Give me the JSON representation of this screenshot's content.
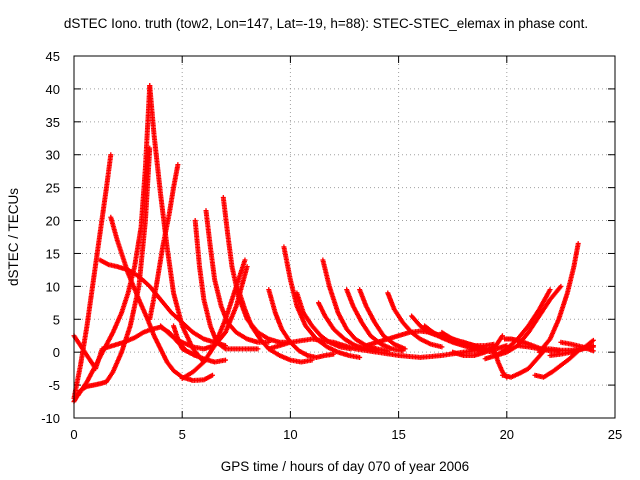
{
  "chart_data": {
    "type": "scatter",
    "title": "dSTEC Iono. truth (tow2, Lon=147, Lat=-19, h=88): STEC-STEC_elemax in phase cont.",
    "xlabel": "GPS time / hours of day 070 of year 2006",
    "ylabel": "dSTEC  / TECUs",
    "xlim": [
      0,
      25
    ],
    "ylim": [
      -10,
      45
    ],
    "xticks": [
      0,
      5,
      10,
      15,
      20,
      25
    ],
    "yticks": [
      -10,
      -5,
      0,
      5,
      10,
      15,
      20,
      25,
      30,
      35,
      40,
      45
    ],
    "grid": true,
    "marker": "plus",
    "color": "#ff0000",
    "series": [
      {
        "x": [
          0.0,
          0.3,
          0.6,
          0.9,
          1.2,
          1.5,
          1.7
        ],
        "y": [
          -7,
          -2,
          4,
          11,
          18,
          25,
          30
        ]
      },
      {
        "x": [
          0.0,
          0.3,
          0.6,
          0.9,
          1.2,
          1.5,
          1.8,
          2.2,
          2.6,
          3.0,
          3.3,
          3.5
        ],
        "y": [
          -7.5,
          -5.8,
          -5.2,
          -5.0,
          -4.8,
          -4.5,
          -3.0,
          0,
          4,
          10,
          20,
          31
        ]
      },
      {
        "x": [
          1.7,
          2.0,
          2.5,
          3.0,
          3.4,
          3.7,
          4.0,
          4.3,
          4.6,
          5.0,
          5.5,
          6.0,
          6.4
        ],
        "y": [
          20.5,
          17,
          12,
          8,
          5,
          2.5,
          0.5,
          -1.5,
          -2.8,
          -3.8,
          -4.3,
          -4.2,
          -3.5
        ]
      },
      {
        "x": [
          0.2,
          0.6,
          1.0,
          1.4,
          1.8,
          2.2,
          2.5,
          2.8,
          3.1,
          3.3,
          3.5
        ],
        "y": [
          -6.5,
          -4.5,
          -2.0,
          0.5,
          3,
          6,
          9,
          13,
          19,
          28,
          40.5
        ]
      },
      {
        "x": [
          3.5,
          3.7,
          4.0,
          4.3,
          4.6,
          5.0,
          5.5,
          6.0
        ],
        "y": [
          40.5,
          33,
          24,
          16,
          9,
          4,
          0.5,
          -1.5
        ]
      },
      {
        "x": [
          0.0,
          0.5,
          1.0,
          1.3,
          1.8,
          2.3,
          2.8,
          3.2,
          3.6,
          4.0,
          4.4,
          4.8,
          5.2,
          5.6
        ],
        "y": [
          2.5,
          0,
          -2.5,
          0.5,
          1.0,
          1.5,
          2.2,
          3.0,
          3.5,
          3.8,
          3.0,
          1.5,
          0.2,
          -0.5
        ]
      },
      {
        "x": [
          1.2,
          1.6,
          2.0,
          2.5,
          3.0,
          3.5,
          4.0,
          4.5,
          5.0,
          5.5,
          6.0,
          6.5,
          7.0
        ],
        "y": [
          14.0,
          13.3,
          13.0,
          12.5,
          11.5,
          10.0,
          8.0,
          6.0,
          4.5,
          3.0,
          2.0,
          1.5,
          1.0
        ]
      },
      {
        "x": [
          3.5,
          3.8,
          4.1,
          4.4,
          4.6,
          4.8
        ],
        "y": [
          5,
          10,
          16,
          21,
          25,
          28.5
        ]
      },
      {
        "x": [
          4.6,
          4.8,
          5.0,
          5.3,
          5.6,
          6.0,
          6.5,
          7.0
        ],
        "y": [
          4,
          2,
          0.5,
          0.0,
          -0.5,
          -1.0,
          -1.5,
          -1.2
        ]
      },
      {
        "x": [
          5.6,
          5.8,
          6.0,
          6.3,
          6.6,
          7.0,
          7.5,
          8.0,
          8.5
        ],
        "y": [
          20,
          13,
          8,
          4,
          1.5,
          0.5,
          0.5,
          0.5,
          0.5
        ]
      },
      {
        "x": [
          6.1,
          6.3,
          6.5,
          6.8,
          7.1,
          7.5,
          8.0,
          8.5,
          9.0
        ],
        "y": [
          21.5,
          16,
          11,
          7,
          4.5,
          3,
          2,
          1.5,
          1.5
        ]
      },
      {
        "x": [
          6.9,
          7.1,
          7.3,
          7.6,
          8.0,
          8.5,
          9.0,
          9.5,
          10.0
        ],
        "y": [
          23.5,
          18,
          13,
          8.5,
          5,
          3,
          2,
          1.5,
          1.5
        ]
      },
      {
        "x": [
          5.0,
          5.5,
          6.0,
          6.5,
          7.0,
          7.3,
          7.6,
          7.9
        ],
        "y": [
          -4.0,
          -3.0,
          -1.5,
          1.0,
          5,
          8,
          11,
          14
        ]
      },
      {
        "x": [
          4.0,
          4.5,
          5.0,
          5.5,
          6.0,
          6.5,
          7.0,
          7.5,
          8.0
        ],
        "y": [
          4,
          2.5,
          1.5,
          0.8,
          0.5,
          1,
          3,
          7,
          13
        ]
      },
      {
        "x": [
          7.6,
          7.9,
          8.2,
          8.6,
          9.0,
          9.5,
          10.0,
          10.5,
          11.0
        ],
        "y": [
          9.5,
          6.5,
          4,
          2,
          0.5,
          -0.5,
          -1.2,
          -1.5,
          -1.2
        ]
      },
      {
        "x": [
          9.0,
          9.3,
          9.6,
          10.0,
          10.4,
          10.8,
          11.2,
          11.6,
          12.0
        ],
        "y": [
          9.5,
          6,
          3.5,
          1.5,
          0.2,
          -0.5,
          -0.8,
          -0.5,
          -0.3
        ]
      },
      {
        "x": [
          9.7,
          10.0,
          10.3,
          10.7,
          11.2,
          11.7,
          12.2,
          12.7,
          13.2
        ],
        "y": [
          16,
          11,
          7,
          4,
          2,
          0.8,
          0,
          -0.5,
          -0.8
        ]
      },
      {
        "x": [
          10.3,
          10.6,
          11.0,
          11.4,
          11.8,
          12.3,
          12.8
        ],
        "y": [
          9,
          6,
          4,
          2.5,
          1.5,
          0.8,
          0.5
        ]
      },
      {
        "x": [
          11.5,
          11.8,
          12.2,
          12.6,
          13.0,
          13.5,
          14.0,
          14.5
        ],
        "y": [
          14,
          10,
          6,
          3.5,
          2,
          1,
          0.5,
          0.2
        ]
      },
      {
        "x": [
          11.3,
          11.6,
          12.0,
          12.5,
          13.0,
          13.5,
          14.0
        ],
        "y": [
          7.5,
          5.5,
          3.5,
          2,
          1,
          0.5,
          0.3
        ]
      },
      {
        "x": [
          12.6,
          12.9,
          13.3,
          13.7,
          14.2,
          14.7,
          15.2
        ],
        "y": [
          9.5,
          7,
          4.5,
          2.5,
          1.2,
          0.5,
          0.2
        ]
      },
      {
        "x": [
          13.2,
          13.5,
          13.9,
          14.3,
          14.8,
          15.3
        ],
        "y": [
          9.5,
          7,
          4.5,
          2.5,
          1.2,
          0.5
        ]
      },
      {
        "x": [
          14.5,
          14.8,
          15.2,
          15.6,
          16.0,
          16.5,
          17.0
        ],
        "y": [
          9,
          6.5,
          4.5,
          3,
          2,
          1.2,
          0.8
        ]
      },
      {
        "x": [
          9.0,
          10.0,
          11.0,
          12.0,
          13.0,
          14.0,
          15.0,
          16.0,
          17.0,
          18.0,
          19.0
        ],
        "y": [
          0.5,
          1.5,
          2,
          1.5,
          0.5,
          0,
          -0.5,
          -0.8,
          -0.5,
          0,
          0.5
        ]
      },
      {
        "x": [
          13.5,
          14.0,
          14.5,
          15.0,
          15.5,
          16.0,
          16.5,
          17.0,
          17.5,
          18.0,
          18.5,
          19.0,
          19.4
        ],
        "y": [
          1.0,
          1.5,
          2.0,
          2.5,
          3.0,
          3.2,
          3.0,
          2.5,
          2.0,
          1.5,
          1.0,
          1.0,
          1.2
        ]
      },
      {
        "x": [
          15.6,
          16.0,
          16.4,
          16.8,
          17.2,
          17.6,
          18.0,
          18.5
        ],
        "y": [
          5.5,
          4,
          3,
          2.5,
          2,
          1.5,
          1.2,
          1.0
        ]
      },
      {
        "x": [
          16.2,
          16.6,
          17.0,
          17.5,
          18.0,
          18.5,
          19.0
        ],
        "y": [
          4,
          3,
          2.2,
          1.5,
          1.0,
          0.5,
          0.3
        ]
      },
      {
        "x": [
          17.0,
          17.4,
          17.8,
          18.2,
          18.6,
          19.0,
          19.4
        ],
        "y": [
          3,
          2.2,
          1.5,
          1.0,
          0.5,
          0.2,
          0.0
        ]
      },
      {
        "x": [
          17.5,
          18.0,
          18.5,
          19.0,
          19.5,
          19.8
        ],
        "y": [
          0,
          -0.5,
          -0.5,
          0,
          1,
          2.5
        ]
      },
      {
        "x": [
          18.0,
          18.5,
          19.0,
          19.5,
          20.0
        ],
        "y": [
          1.5,
          1,
          0.5,
          0.5,
          1.0
        ]
      },
      {
        "x": [
          19.4,
          19.6,
          19.8,
          20.0
        ],
        "y": [
          0.5,
          -1.5,
          -3,
          -3.8
        ]
      },
      {
        "x": [
          19.8,
          20.2,
          20.6,
          21.0,
          21.4,
          21.8
        ],
        "y": [
          -3.5,
          -3.8,
          -3.2,
          -2.5,
          -1.0,
          0.5
        ]
      },
      {
        "x": [
          19.9,
          20.2,
          20.5,
          20.8,
          21.2,
          21.6,
          22.0,
          22.4
        ],
        "y": [
          2.0,
          2.0,
          1.8,
          1.5,
          1.0,
          0.5,
          0.2,
          0.2
        ]
      },
      {
        "x": [
          19.5,
          20.0,
          20.5,
          21.0,
          21.5,
          22.0
        ],
        "y": [
          -0.5,
          0.5,
          2,
          4,
          6.5,
          9.5
        ]
      },
      {
        "x": [
          19.0,
          19.5,
          20.0,
          20.5,
          21.0,
          21.5,
          22.0,
          22.5
        ],
        "y": [
          -1.0,
          -0.5,
          0.0,
          1.0,
          3.0,
          5.5,
          8.0,
          10.0
        ]
      },
      {
        "x": [
          21.3,
          21.7,
          22.1,
          22.5,
          22.9,
          23.3
        ],
        "y": [
          -3.5,
          -3.8,
          -3.0,
          -2.0,
          -1.0,
          0.2
        ]
      },
      {
        "x": [
          21.5,
          22.0,
          22.4,
          22.8,
          23.1,
          23.3
        ],
        "y": [
          0,
          2,
          5,
          9,
          13,
          16.5
        ]
      },
      {
        "x": [
          20.5,
          21.0,
          21.5,
          22.0,
          22.5,
          23.0,
          23.5,
          24.0
        ],
        "y": [
          1.0,
          0.8,
          0.5,
          0.5,
          0.3,
          0.3,
          0.5,
          0.8
        ]
      },
      {
        "x": [
          22.0,
          22.5,
          23.0,
          23.5,
          24.0
        ],
        "y": [
          -0.5,
          -0.3,
          0,
          0.5,
          1.0
        ]
      },
      {
        "x": [
          22.5,
          23.0,
          23.5,
          24.0
        ],
        "y": [
          1.5,
          1.2,
          0.8,
          0.2
        ]
      },
      {
        "x": [
          23.0,
          23.5,
          24.0
        ],
        "y": [
          0.0,
          0.5,
          1.8
        ]
      }
    ]
  }
}
